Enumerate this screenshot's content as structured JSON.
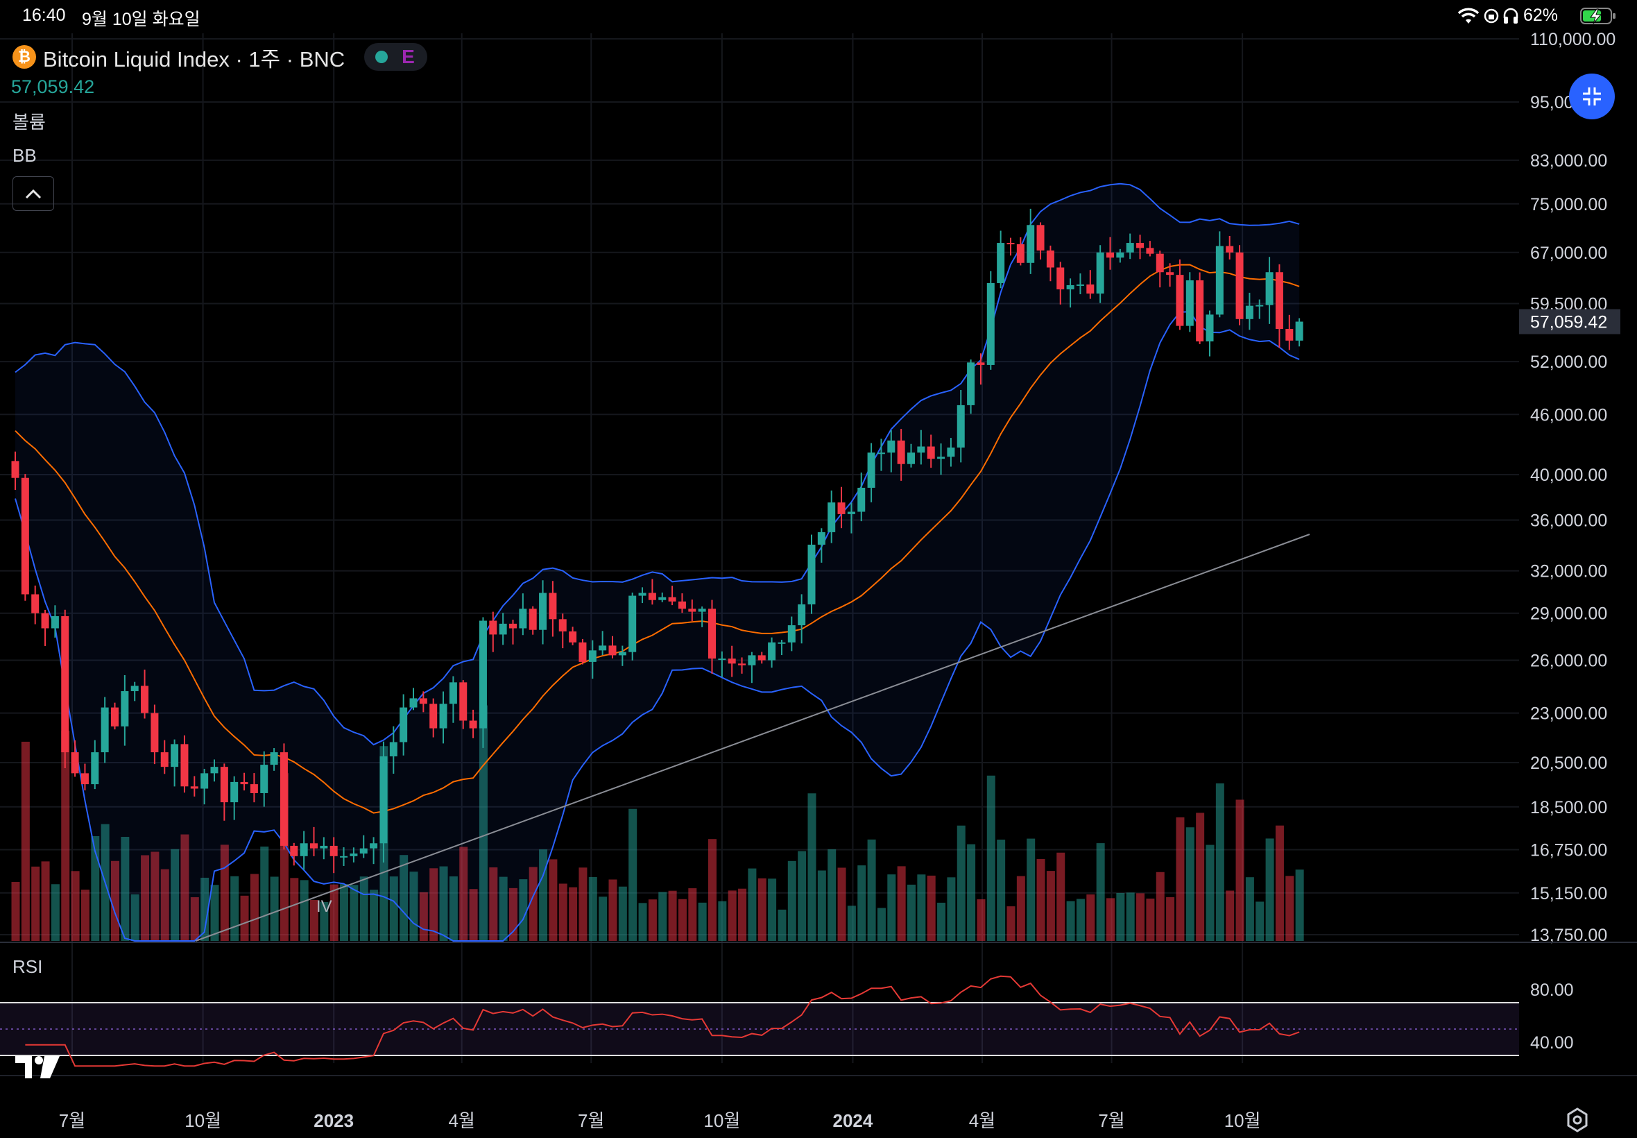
{
  "status_bar": {
    "time": "16:40",
    "date": "9월 10일 화요일",
    "battery": "62%"
  },
  "header": {
    "symbol_title": "Bitcoin Liquid Index · 1주 · BNC",
    "earnings_badge": "E",
    "last_price": "57,059.42"
  },
  "indicators": {
    "volume_label": "볼륨",
    "bb_label": "BB",
    "rsi_label": "RSI"
  },
  "icons": {
    "coin": "bitcoin-logo-icon",
    "market_status": "market-open-dot-icon",
    "collapse": "chevron-up-icon",
    "fab": "compress-arrows-icon",
    "brand": "tradingview-logo-icon",
    "settings": "settings-gear-icon",
    "wifi": "wifi-icon",
    "lock": "rotation-lock-icon",
    "headphones": "headphones-icon",
    "battery": "battery-charging-icon"
  },
  "colors": {
    "up": "#26a69a",
    "down": "#f23645",
    "bb_band": "#2962ff",
    "bb_basis": "#ff6d00",
    "rsi_line": "#e53935",
    "accent": "#2962ff",
    "text": "#d1d4dc"
  },
  "drawing": {
    "label": "IV"
  },
  "chart_data": {
    "type": "candlestick",
    "title": "Bitcoin Liquid Index · 1주 · BNC",
    "interval": "1주",
    "scale": "log",
    "y_axis_ticks": [
      "110,000.00",
      "95,000.00",
      "83,000.00",
      "75,000.00",
      "67,000.00",
      "59,500.00",
      "52,000.00",
      "46,000.00",
      "40,000.00",
      "36,000.00",
      "32,000.00",
      "29,000.00",
      "26,000.00",
      "23,000.00",
      "20,500.00",
      "18,500.00",
      "16,750.00",
      "15,150.00",
      "13,750.00"
    ],
    "last_price_label": "57,059.42",
    "rsi_ticks": [
      "80.00",
      "40.00"
    ],
    "x_axis_labels": [
      "7월",
      "10월",
      "2023",
      "4월",
      "7월",
      "10월",
      "2024",
      "4월",
      "7월",
      "10월"
    ],
    "x_axis_label_dates": [
      "2022-07",
      "2022-10",
      "2023-01",
      "2023-04",
      "2023-07",
      "2023-10",
      "2024-01",
      "2024-04",
      "2024-07",
      "2024-10"
    ],
    "grid": true,
    "series": [
      {
        "name": "Bitcoin Liquid Index",
        "role": "ohlc",
        "close": [
          39700,
          30300,
          29000,
          28000,
          28800,
          21000,
          20000,
          19500,
          21000,
          23300,
          22300,
          24200,
          24500,
          23000,
          21000,
          20300,
          21400,
          19400,
          19300,
          20000,
          20300,
          18700,
          19600,
          19500,
          19100,
          20400,
          21000,
          16900,
          16500,
          17000,
          16800,
          16900,
          16500,
          16500,
          16600,
          16800,
          17000,
          20800,
          21500,
          23300,
          23800,
          23500,
          22200,
          23500,
          24700,
          22600,
          22200,
          28500,
          27600,
          28300,
          28000,
          29300,
          27900,
          30400,
          28600,
          27800,
          27100,
          25900,
          26600,
          26900,
          26300,
          26500,
          30200,
          30400,
          29900,
          30100,
          29800,
          29300,
          29100,
          29300,
          26100,
          26100,
          25800,
          25700,
          26300,
          26000,
          27100,
          27100,
          28200,
          29600,
          34000,
          35000,
          37500,
          36500,
          36700,
          38800,
          42100,
          42100,
          43300,
          41000,
          42100,
          42700,
          41500,
          41700,
          42600,
          47000,
          51900,
          51600,
          62400,
          68500,
          68300,
          65400,
          71400,
          67300,
          64700,
          61500,
          62100,
          62200,
          60900,
          67000,
          66200,
          67000,
          68500,
          67700,
          66800,
          64000,
          63600,
          56500,
          62800,
          54500,
          58000,
          68000,
          67000,
          57400,
          59200,
          59300,
          64000,
          56100,
          54600,
          57059
        ]
      },
      {
        "name": "BB",
        "role": "bollinger"
      },
      {
        "name": "RSI",
        "role": "oscillator"
      }
    ]
  }
}
